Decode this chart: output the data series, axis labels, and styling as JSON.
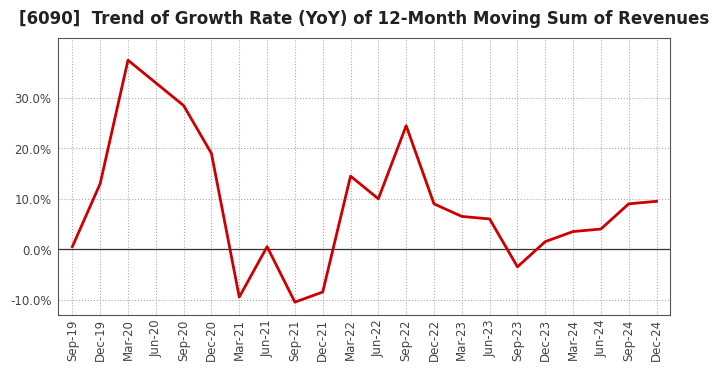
{
  "title": "[6090]  Trend of Growth Rate (YoY) of 12-Month Moving Sum of Revenues",
  "x_labels": [
    "Sep-19",
    "Dec-19",
    "Mar-20",
    "Jun-20",
    "Sep-20",
    "Dec-20",
    "Mar-21",
    "Jun-21",
    "Sep-21",
    "Dec-21",
    "Mar-22",
    "Jun-22",
    "Sep-22",
    "Dec-22",
    "Mar-23",
    "Jun-23",
    "Sep-23",
    "Dec-23",
    "Mar-24",
    "Jun-24",
    "Sep-24",
    "Dec-24"
  ],
  "y_values": [
    0.5,
    13.0,
    37.5,
    33.0,
    28.5,
    19.0,
    -9.5,
    0.5,
    -10.5,
    -8.5,
    14.5,
    10.0,
    24.5,
    9.0,
    6.5,
    6.0,
    -3.5,
    1.5,
    3.5,
    4.0,
    9.0,
    9.5
  ],
  "line_color": "#cc0000",
  "line_width": 2.0,
  "ylim": [
    -13,
    42
  ],
  "yticks": [
    -10.0,
    0.0,
    10.0,
    20.0,
    30.0
  ],
  "ytick_labels": [
    "-10.0%",
    "0.0%",
    "10.0%",
    "20.0%",
    "30.0%"
  ],
  "background_color": "#ffffff",
  "plot_bg_color": "#ffffff",
  "grid_color": "#aaaaaa",
  "title_fontsize": 12,
  "tick_fontsize": 8.5,
  "title_color": "#222222"
}
